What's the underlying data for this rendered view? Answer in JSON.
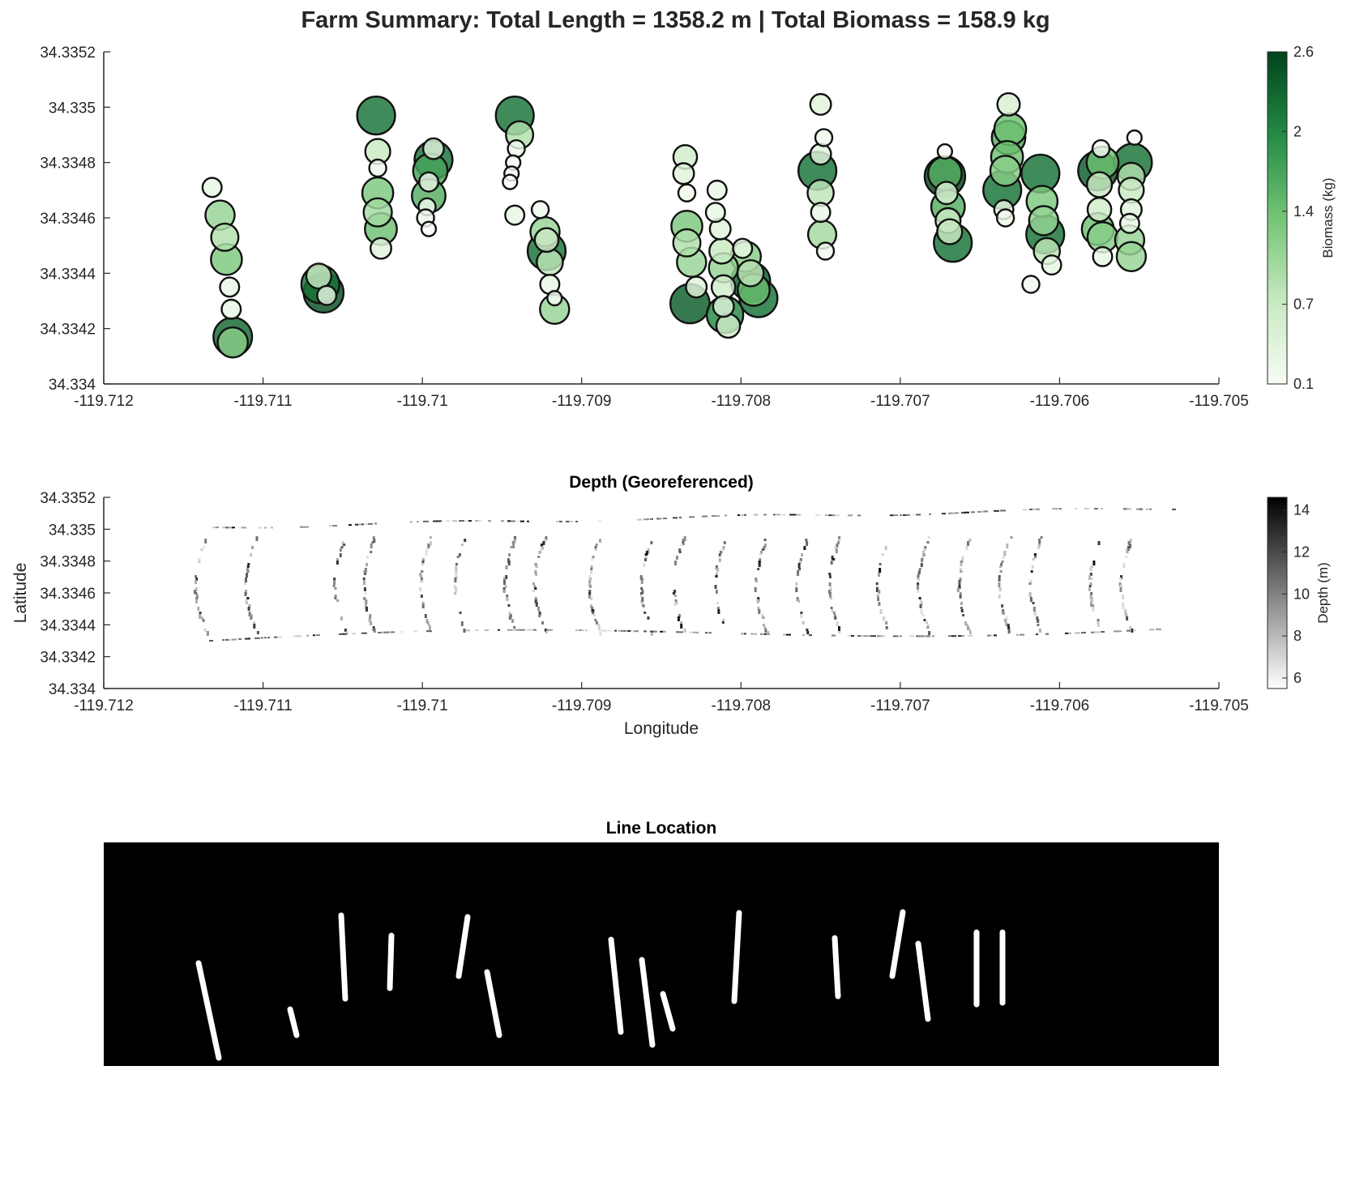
{
  "title": "Farm Summary: Total Length = 1358.2 m | Total Biomass = 158.9 kg",
  "chart_data": [
    {
      "type": "scatter",
      "name": "biomass-bubbles",
      "title": "",
      "xlabel": "",
      "ylabel": "",
      "xlim": [
        -119.712,
        -119.705
      ],
      "ylim": [
        34.334,
        34.3352
      ],
      "xticks": [
        "-119.712",
        "-119.711",
        "-119.71",
        "-119.709",
        "-119.708",
        "-119.707",
        "-119.706",
        "-119.705"
      ],
      "yticks": [
        "34.334",
        "34.3342",
        "34.3344",
        "34.3346",
        "34.3348",
        "34.335",
        "34.3352"
      ],
      "colorbar": {
        "label": "Biomass (kg)",
        "ticks": [
          "0.1",
          "0.7",
          "1.4",
          "2",
          "2.6"
        ],
        "range": [
          0.1,
          2.6
        ],
        "colormap": [
          "#f7fcf5",
          "#c7e9c0",
          "#74c476",
          "#238b45",
          "#00441b"
        ]
      },
      "points": [
        {
          "x": -119.71132,
          "y": 34.33471,
          "b": 0.3
        },
        {
          "x": -119.71127,
          "y": 34.33461,
          "b": 1.1
        },
        {
          "x": -119.71124,
          "y": 34.33453,
          "b": 0.9
        },
        {
          "x": -119.71123,
          "y": 34.33445,
          "b": 1.3
        },
        {
          "x": -119.71121,
          "y": 34.33435,
          "b": 0.3
        },
        {
          "x": -119.7112,
          "y": 34.33427,
          "b": 0.3
        },
        {
          "x": -119.71119,
          "y": 34.33417,
          "b": 2.3
        },
        {
          "x": -119.71119,
          "y": 34.33415,
          "b": 1.2
        },
        {
          "x": -119.71065,
          "y": 34.33439,
          "b": 0.7
        },
        {
          "x": -119.71064,
          "y": 34.33436,
          "b": 2.2
        },
        {
          "x": -119.71062,
          "y": 34.33433,
          "b": 2.5
        },
        {
          "x": -119.7106,
          "y": 34.33432,
          "b": 0.3
        },
        {
          "x": -119.71029,
          "y": 34.33497,
          "b": 2.2
        },
        {
          "x": -119.71028,
          "y": 34.33484,
          "b": 0.7
        },
        {
          "x": -119.71028,
          "y": 34.33478,
          "b": 0.2
        },
        {
          "x": -119.71028,
          "y": 34.33469,
          "b": 1.3
        },
        {
          "x": -119.71028,
          "y": 34.33462,
          "b": 1.0
        },
        {
          "x": -119.71026,
          "y": 34.33456,
          "b": 1.4
        },
        {
          "x": -119.71026,
          "y": 34.33449,
          "b": 0.4
        },
        {
          "x": -119.70993,
          "y": 34.33485,
          "b": 0.4
        },
        {
          "x": -119.70993,
          "y": 34.33481,
          "b": 2.2
        },
        {
          "x": -119.70995,
          "y": 34.33477,
          "b": 1.7
        },
        {
          "x": -119.70996,
          "y": 34.33473,
          "b": 0.3
        },
        {
          "x": -119.70996,
          "y": 34.33468,
          "b": 1.6
        },
        {
          "x": -119.70997,
          "y": 34.33464,
          "b": 0.2
        },
        {
          "x": -119.70998,
          "y": 34.3346,
          "b": 0.2
        },
        {
          "x": -119.70996,
          "y": 34.33456,
          "b": 0.1
        },
        {
          "x": -119.70942,
          "y": 34.33497,
          "b": 2.2
        },
        {
          "x": -119.70939,
          "y": 34.3349,
          "b": 0.9
        },
        {
          "x": -119.70941,
          "y": 34.33485,
          "b": 0.2
        },
        {
          "x": -119.70943,
          "y": 34.3348,
          "b": 0.1
        },
        {
          "x": -119.70944,
          "y": 34.33476,
          "b": 0.1
        },
        {
          "x": -119.70945,
          "y": 34.33473,
          "b": 0.1
        },
        {
          "x": -119.70942,
          "y": 34.33461,
          "b": 0.3
        },
        {
          "x": -119.70926,
          "y": 34.33463,
          "b": 0.2
        },
        {
          "x": -119.70923,
          "y": 34.33455,
          "b": 1.1
        },
        {
          "x": -119.70922,
          "y": 34.33452,
          "b": 0.6
        },
        {
          "x": -119.70922,
          "y": 34.33448,
          "b": 2.2
        },
        {
          "x": -119.7092,
          "y": 34.33444,
          "b": 0.8
        },
        {
          "x": -119.7092,
          "y": 34.33436,
          "b": 0.3
        },
        {
          "x": -119.70917,
          "y": 34.33431,
          "b": 0.1
        },
        {
          "x": -119.70917,
          "y": 34.33427,
          "b": 1.1
        },
        {
          "x": -119.70835,
          "y": 34.33482,
          "b": 0.6
        },
        {
          "x": -119.70836,
          "y": 34.33476,
          "b": 0.4
        },
        {
          "x": -119.70834,
          "y": 34.33469,
          "b": 0.2
        },
        {
          "x": -119.70834,
          "y": 34.33457,
          "b": 1.3
        },
        {
          "x": -119.70834,
          "y": 34.33451,
          "b": 0.9
        },
        {
          "x": -119.70831,
          "y": 34.33444,
          "b": 1.1
        },
        {
          "x": -119.70828,
          "y": 34.33435,
          "b": 0.4
        },
        {
          "x": -119.70832,
          "y": 34.33429,
          "b": 2.4
        },
        {
          "x": -119.70815,
          "y": 34.3347,
          "b": 0.3
        },
        {
          "x": -119.70816,
          "y": 34.33462,
          "b": 0.3
        },
        {
          "x": -119.70813,
          "y": 34.33456,
          "b": 0.4
        },
        {
          "x": -119.70812,
          "y": 34.33448,
          "b": 0.7
        },
        {
          "x": -119.70811,
          "y": 34.33442,
          "b": 1.1
        },
        {
          "x": -119.70811,
          "y": 34.33435,
          "b": 0.6
        },
        {
          "x": -119.70811,
          "y": 34.33428,
          "b": 0.4
        },
        {
          "x": -119.7081,
          "y": 34.33425,
          "b": 2.0
        },
        {
          "x": -119.70808,
          "y": 34.33421,
          "b": 0.6
        },
        {
          "x": -119.70799,
          "y": 34.33449,
          "b": 0.3
        },
        {
          "x": -119.70797,
          "y": 34.33446,
          "b": 1.2
        },
        {
          "x": -119.70794,
          "y": 34.3344,
          "b": 0.8
        },
        {
          "x": -119.70794,
          "y": 34.33437,
          "b": 2.4
        },
        {
          "x": -119.70792,
          "y": 34.33434,
          "b": 1.4
        },
        {
          "x": -119.70789,
          "y": 34.33431,
          "b": 2.2
        },
        {
          "x": -119.7075,
          "y": 34.33501,
          "b": 0.4
        },
        {
          "x": -119.70748,
          "y": 34.33489,
          "b": 0.2
        },
        {
          "x": -119.7075,
          "y": 34.33483,
          "b": 0.4
        },
        {
          "x": -119.70752,
          "y": 34.33477,
          "b": 2.2
        },
        {
          "x": -119.7075,
          "y": 34.33469,
          "b": 0.8
        },
        {
          "x": -119.7075,
          "y": 34.33462,
          "b": 0.3
        },
        {
          "x": -119.70749,
          "y": 34.33454,
          "b": 1.0
        },
        {
          "x": -119.70747,
          "y": 34.33448,
          "b": 0.2
        },
        {
          "x": -119.70672,
          "y": 34.33484,
          "b": 0.1
        },
        {
          "x": -119.70672,
          "y": 34.33476,
          "b": 1.6
        },
        {
          "x": -119.70672,
          "y": 34.33475,
          "b": 2.6
        },
        {
          "x": -119.70671,
          "y": 34.33469,
          "b": 0.5
        },
        {
          "x": -119.7067,
          "y": 34.33464,
          "b": 1.6
        },
        {
          "x": -119.7067,
          "y": 34.33459,
          "b": 0.7
        },
        {
          "x": -119.70669,
          "y": 34.33455,
          "b": 0.7
        },
        {
          "x": -119.70667,
          "y": 34.33451,
          "b": 2.2
        },
        {
          "x": -119.70632,
          "y": 34.33501,
          "b": 0.5
        },
        {
          "x": -119.70631,
          "y": 34.33492,
          "b": 1.4
        },
        {
          "x": -119.70632,
          "y": 34.33489,
          "b": 1.6
        },
        {
          "x": -119.70633,
          "y": 34.33482,
          "b": 1.4
        },
        {
          "x": -119.70634,
          "y": 34.33477,
          "b": 1.2
        },
        {
          "x": -119.70636,
          "y": 34.3347,
          "b": 2.2
        },
        {
          "x": -119.70635,
          "y": 34.33463,
          "b": 0.3
        },
        {
          "x": -119.70634,
          "y": 34.3346,
          "b": 0.2
        },
        {
          "x": -119.70612,
          "y": 34.33476,
          "b": 2.2
        },
        {
          "x": -119.70611,
          "y": 34.33466,
          "b": 1.3
        },
        {
          "x": -119.7061,
          "y": 34.33459,
          "b": 1.1
        },
        {
          "x": -119.70609,
          "y": 34.33454,
          "b": 2.2
        },
        {
          "x": -119.70608,
          "y": 34.33448,
          "b": 0.8
        },
        {
          "x": -119.70605,
          "y": 34.33443,
          "b": 0.3
        },
        {
          "x": -119.70618,
          "y": 34.33436,
          "b": 0.2
        },
        {
          "x": -119.70574,
          "y": 34.33485,
          "b": 0.2
        },
        {
          "x": -119.70573,
          "y": 34.3348,
          "b": 1.4
        },
        {
          "x": -119.70576,
          "y": 34.33477,
          "b": 2.4
        },
        {
          "x": -119.70575,
          "y": 34.33472,
          "b": 0.7
        },
        {
          "x": -119.70575,
          "y": 34.33463,
          "b": 0.6
        },
        {
          "x": -119.70576,
          "y": 34.33456,
          "b": 1.4
        },
        {
          "x": -119.70573,
          "y": 34.33453,
          "b": 1.2
        },
        {
          "x": -119.70573,
          "y": 34.33446,
          "b": 0.3
        },
        {
          "x": -119.70553,
          "y": 34.33489,
          "b": 0.1
        },
        {
          "x": -119.70554,
          "y": 34.3348,
          "b": 2.2
        },
        {
          "x": -119.70555,
          "y": 34.33475,
          "b": 0.9
        },
        {
          "x": -119.70555,
          "y": 34.3347,
          "b": 0.7
        },
        {
          "x": -119.70555,
          "y": 34.33463,
          "b": 0.4
        },
        {
          "x": -119.70556,
          "y": 34.33458,
          "b": 0.3
        },
        {
          "x": -119.70556,
          "y": 34.33452,
          "b": 1.1
        },
        {
          "x": -119.70555,
          "y": 34.33446,
          "b": 1.1
        }
      ]
    },
    {
      "type": "heatmap",
      "name": "depth-map",
      "title": "Depth (Georeferenced)",
      "xlabel": "Longitude",
      "ylabel": "Latitude",
      "xlim": [
        -119.712,
        -119.705
      ],
      "ylim": [
        34.334,
        34.3352
      ],
      "xticks": [
        "-119.712",
        "-119.711",
        "-119.71",
        "-119.709",
        "-119.708",
        "-119.707",
        "-119.706",
        "-119.705"
      ],
      "yticks": [
        "34.334",
        "34.3342",
        "34.3344",
        "34.3346",
        "34.3348",
        "34.335",
        "34.3352"
      ],
      "colorbar": {
        "label": "Depth (m)",
        "ticks": [
          "6",
          "8",
          "10",
          "12",
          "14"
        ],
        "range": [
          5.5,
          14.6
        ],
        "colormap": [
          "#ffffff",
          "#000000"
        ]
      }
    },
    {
      "type": "image",
      "name": "line-location-mask",
      "title": "Line Location",
      "background": "#000000",
      "foreground": "#ffffff"
    }
  ]
}
